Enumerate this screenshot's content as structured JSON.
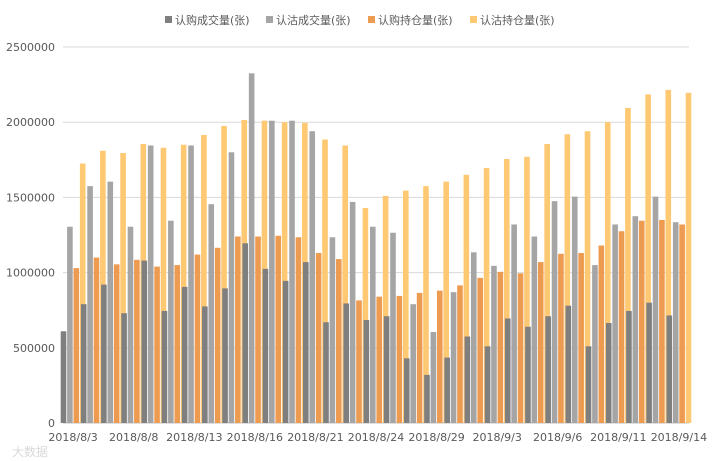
{
  "watermark": "大数据",
  "chart_data": {
    "type": "bar",
    "series": [
      {
        "name": "认购成交量(张)",
        "color": "#7f7f7f",
        "values": [
          610000,
          790000,
          920000,
          730000,
          1080000,
          745000,
          905000,
          775000,
          895000,
          1195000,
          1025000,
          945000,
          1070000,
          670000,
          795000,
          685000,
          710000,
          430000,
          320000,
          435000,
          575000,
          510000,
          695000,
          640000,
          710000,
          780000,
          510000,
          665000,
          745000,
          800000,
          715000
        ]
      },
      {
        "name": "认沽成交量(张)",
        "color": "#a5a5a5",
        "values": [
          1305000,
          1575000,
          1605000,
          1305000,
          1845000,
          1345000,
          1845000,
          1455000,
          1800000,
          2325000,
          2010000,
          2010000,
          1940000,
          1235000,
          1470000,
          1305000,
          1265000,
          790000,
          605000,
          870000,
          1135000,
          1045000,
          1320000,
          1240000,
          1475000,
          1505000,
          1050000,
          1320000,
          1375000,
          1505000,
          1335000
        ]
      },
      {
        "name": "认购持仓量(张)",
        "color": "#ed9b50",
        "values": [
          1030000,
          1100000,
          1055000,
          1085000,
          1040000,
          1050000,
          1120000,
          1165000,
          1240000,
          1240000,
          1245000,
          1235000,
          1130000,
          1090000,
          815000,
          840000,
          845000,
          865000,
          880000,
          915000,
          965000,
          1005000,
          995000,
          1070000,
          1125000,
          1130000,
          1180000,
          1275000,
          1345000,
          1350000,
          1320000
        ]
      },
      {
        "name": "认沽持仓量(张)",
        "color": "#ffc872",
        "values": [
          1725000,
          1810000,
          1795000,
          1855000,
          1830000,
          1850000,
          1915000,
          1975000,
          2015000,
          2010000,
          2000000,
          1995000,
          1885000,
          1845000,
          1430000,
          1510000,
          1545000,
          1575000,
          1605000,
          1650000,
          1695000,
          1755000,
          1770000,
          1855000,
          1920000,
          1940000,
          2000000,
          2095000,
          2185000,
          2215000,
          2195000
        ]
      }
    ],
    "x_tick_labels": [
      "2018/8/3",
      "2018/8/8",
      "2018/8/13",
      "2018/8/16",
      "2018/8/21",
      "2018/8/24",
      "2018/8/29",
      "2018/9/3",
      "2018/9/6",
      "2018/9/11",
      "2018/9/14"
    ],
    "x_tick_every": 3,
    "y_ticks": [
      "0",
      "500000",
      "1000000",
      "1500000",
      "2000000",
      "2500000"
    ],
    "ylim": [
      0,
      2500000
    ],
    "grid": true,
    "legend": "top"
  }
}
